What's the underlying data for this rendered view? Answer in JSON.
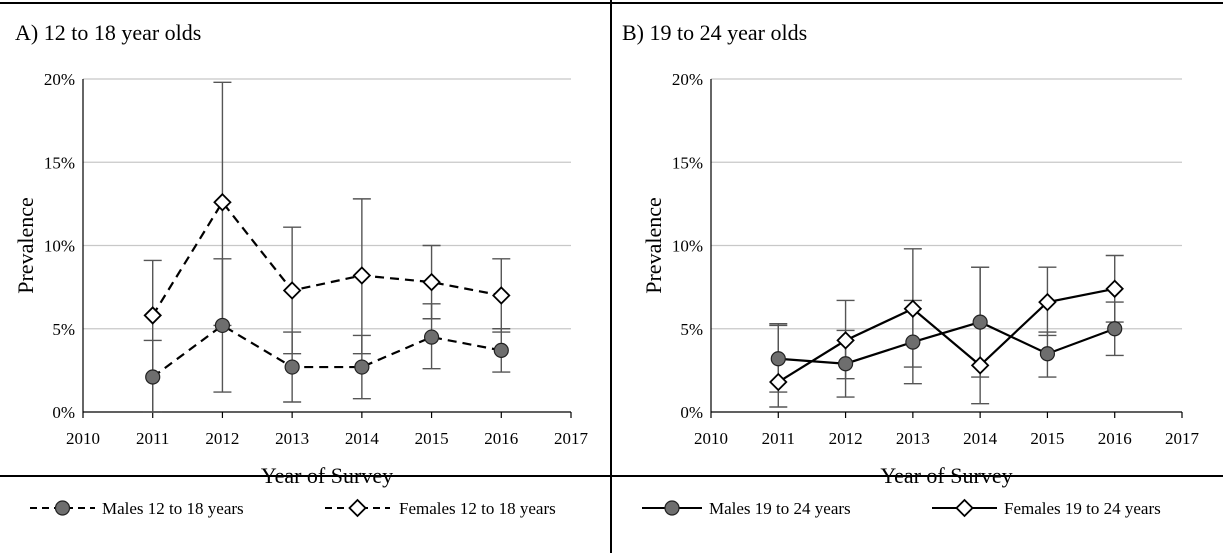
{
  "chart_data": [
    {
      "type": "line",
      "title": "A) 12 to 18 year olds",
      "xlabel": "Year of Survey",
      "ylabel": "Prevalence",
      "xlim": [
        2010,
        2017
      ],
      "ylim": [
        0,
        20
      ],
      "x_ticks": [
        "2010",
        "2011",
        "2012",
        "2013",
        "2014",
        "2015",
        "2016",
        "2017"
      ],
      "y_ticks": [
        "0%",
        "5%",
        "10%",
        "15%",
        "20%"
      ],
      "grid": true,
      "legend_position": "bottom",
      "x": [
        2011,
        2012,
        2013,
        2014,
        2015,
        2016
      ],
      "series": [
        {
          "name": "Males 12 to 18 years",
          "style": "dashed",
          "marker": "circle-filled",
          "values": [
            2.1,
            5.2,
            2.7,
            2.7,
            4.5,
            3.7
          ],
          "error_low": [
            0.0,
            1.2,
            0.6,
            0.8,
            2.6,
            2.4
          ],
          "error_high": [
            4.3,
            9.2,
            4.8,
            4.6,
            6.5,
            5.0
          ]
        },
        {
          "name": "Females 12 to 18 years",
          "style": "dashed",
          "marker": "diamond-open",
          "values": [
            5.8,
            12.6,
            7.3,
            8.2,
            7.8,
            7.0
          ],
          "error_low": [
            0.0,
            5.2,
            3.5,
            3.5,
            5.6,
            4.8
          ],
          "error_high": [
            9.1,
            19.8,
            11.1,
            12.8,
            10.0,
            9.2
          ]
        }
      ]
    },
    {
      "type": "line",
      "title": "B) 19 to 24 year olds",
      "xlabel": "Year of Survey",
      "ylabel": "Prevalence",
      "xlim": [
        2010,
        2017
      ],
      "ylim": [
        0,
        20
      ],
      "x_ticks": [
        "2010",
        "2011",
        "2012",
        "2013",
        "2014",
        "2015",
        "2016",
        "2017"
      ],
      "y_ticks": [
        "0%",
        "5%",
        "10%",
        "15%",
        "20%"
      ],
      "grid": true,
      "legend_position": "bottom",
      "x": [
        2011,
        2012,
        2013,
        2014,
        2015,
        2016
      ],
      "series": [
        {
          "name": "Males 19 to 24 years",
          "style": "solid",
          "marker": "circle-filled",
          "values": [
            3.2,
            2.9,
            4.2,
            5.4,
            3.5,
            5.0
          ],
          "error_low": [
            1.2,
            0.9,
            1.7,
            2.1,
            2.1,
            3.4
          ],
          "error_high": [
            5.3,
            4.9,
            6.7,
            8.7,
            4.8,
            6.6
          ]
        },
        {
          "name": "Females 19 to 24 years",
          "style": "solid",
          "marker": "diamond-open",
          "values": [
            1.8,
            4.3,
            6.2,
            2.8,
            6.6,
            7.4
          ],
          "error_low": [
            0.3,
            2.0,
            2.7,
            0.5,
            4.6,
            5.4
          ],
          "error_high": [
            5.2,
            6.7,
            9.8,
            8.7,
            8.7,
            9.4
          ]
        }
      ]
    }
  ]
}
